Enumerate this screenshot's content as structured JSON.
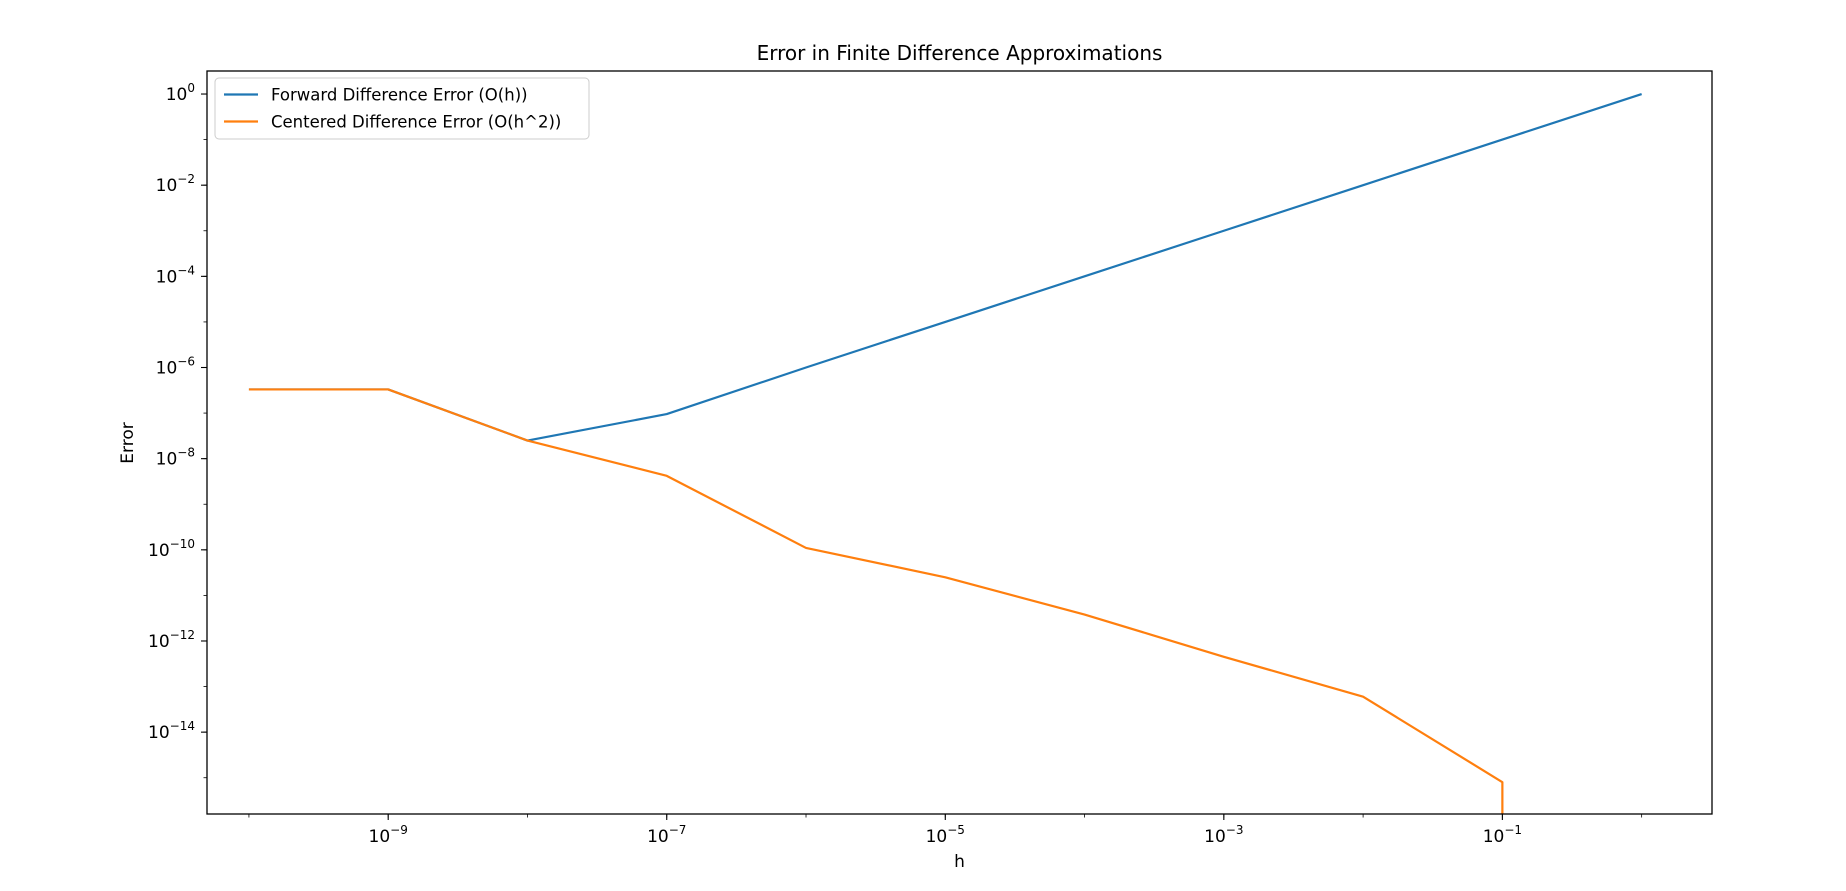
{
  "chart_data": {
    "type": "line",
    "title": "Error in Finite Difference Approximations",
    "xlabel": "h",
    "ylabel": "Error",
    "xscale": "log",
    "yscale": "log",
    "xlim": [
      5e-11,
      3.2
    ],
    "ylim": [
      1.6e-16,
      3.2
    ],
    "grid": false,
    "legend_position": "upper-left",
    "x_ticks": [
      {
        "value": 1e-09,
        "base": "10",
        "exp": "−9"
      },
      {
        "value": 1e-07,
        "base": "10",
        "exp": "−7"
      },
      {
        "value": 1e-05,
        "base": "10",
        "exp": "−5"
      },
      {
        "value": 0.001,
        "base": "10",
        "exp": "−3"
      },
      {
        "value": 0.1,
        "base": "10",
        "exp": "−1"
      }
    ],
    "y_ticks": [
      {
        "value": 1,
        "base": "10",
        "exp": "0"
      },
      {
        "value": 0.01,
        "base": "10",
        "exp": "−2"
      },
      {
        "value": 0.0001,
        "base": "10",
        "exp": "−4"
      },
      {
        "value": 1e-06,
        "base": "10",
        "exp": "−6"
      },
      {
        "value": 1e-08,
        "base": "10",
        "exp": "−8"
      },
      {
        "value": 1e-10,
        "base": "10",
        "exp": "−10"
      },
      {
        "value": 1e-12,
        "base": "10",
        "exp": "−12"
      },
      {
        "value": 1e-14,
        "base": "10",
        "exp": "−14"
      }
    ],
    "series": [
      {
        "name": "Forward Difference Error (O(h))",
        "color": "#1f77b4",
        "x": [
          1e-10,
          1e-09,
          1e-08,
          1e-07,
          1e-06,
          1e-05,
          0.0001,
          0.001,
          0.01,
          0.1,
          1
        ],
        "y": [
          3.3e-07,
          3.3e-07,
          2.5e-08,
          9.5e-08,
          1e-06,
          1e-05,
          0.0001,
          0.001,
          0.01,
          0.1,
          1
        ]
      },
      {
        "name": "Centered Difference Error (O(h^2))",
        "color": "#ff7f0e",
        "x": [
          1e-10,
          1e-09,
          1e-08,
          1e-07,
          1e-06,
          1e-05,
          0.0001,
          0.001,
          0.01,
          0.1,
          0.1
        ],
        "y": [
          3.3e-07,
          3.3e-07,
          2.5e-08,
          4.2e-09,
          1.1e-10,
          2.5e-11,
          3.8e-12,
          4.5e-13,
          6e-14,
          8e-16,
          1e-16
        ]
      }
    ]
  }
}
